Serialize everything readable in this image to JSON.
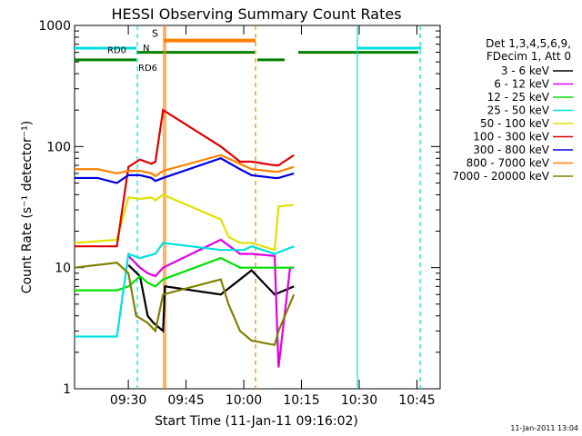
{
  "chart_data": {
    "type": "line",
    "title": "HESSI Observing Summary Count Rates",
    "xlabel": "Start Time (11-Jan-11 09:16:02)",
    "ylabel": "Count Rate (s⁻¹ detector⁻¹)",
    "yscale": "log",
    "ylim": [
      1,
      1000
    ],
    "xlim_minutes": [
      0,
      95
    ],
    "x_tick_labels": [
      "09:30",
      "09:45",
      "10:00",
      "10:15",
      "10:30",
      "10:45"
    ],
    "y_tick_labels": [
      "1",
      "10",
      "100",
      "1000"
    ],
    "footer_date": "11-Jan-2011 13:04",
    "legend_header": [
      "Det 1,3,4,5,6,9,",
      "FDecim 1, Att 0"
    ],
    "legend_position": "right",
    "series": [
      {
        "name": "3 - 6 keV",
        "color": "#000000",
        "points": [
          [
            14,
            10.5
          ],
          [
            17,
            8.5
          ],
          [
            19,
            4
          ],
          [
            20.5,
            3.5
          ],
          [
            23,
            3
          ],
          [
            23.5,
            7
          ],
          [
            38,
            6
          ],
          [
            43,
            8
          ],
          [
            46,
            9.5
          ],
          [
            52,
            6
          ],
          [
            57,
            7
          ]
        ]
      },
      {
        "name": "6 - 12 keV",
        "color": "#e000e0",
        "points": [
          [
            14,
            12.5
          ],
          [
            17,
            10
          ],
          [
            19,
            9
          ],
          [
            21,
            8.5
          ],
          [
            23,
            10
          ],
          [
            38,
            17
          ],
          [
            43,
            13
          ],
          [
            46,
            13
          ],
          [
            52,
            12.5
          ],
          [
            53,
            1.5
          ],
          [
            56,
            10
          ],
          [
            57,
            10
          ]
        ]
      },
      {
        "name": "12 - 25 keV",
        "color": "#00e000",
        "points": [
          [
            0,
            6.5
          ],
          [
            11,
            6.5
          ],
          [
            14,
            7
          ],
          [
            17,
            8.5
          ],
          [
            19,
            7.5
          ],
          [
            21,
            7
          ],
          [
            23,
            8
          ],
          [
            38,
            12
          ],
          [
            43,
            10
          ],
          [
            46,
            10
          ],
          [
            52,
            10
          ],
          [
            57,
            10
          ]
        ]
      },
      {
        "name": "25 - 50 keV",
        "color": "#00e0e0",
        "points": [
          [
            0,
            2.7
          ],
          [
            11,
            2.7
          ],
          [
            14,
            13
          ],
          [
            17,
            12
          ],
          [
            19,
            12.5
          ],
          [
            21,
            13
          ],
          [
            23,
            16
          ],
          [
            38,
            14
          ],
          [
            44,
            14
          ],
          [
            46,
            15
          ],
          [
            52,
            13
          ],
          [
            57,
            15
          ]
        ]
      },
      {
        "name": "50 - 100 keV",
        "color": "#e0e000",
        "points": [
          [
            0,
            16
          ],
          [
            11,
            17
          ],
          [
            14,
            38
          ],
          [
            17,
            37
          ],
          [
            20,
            38
          ],
          [
            21,
            36
          ],
          [
            23,
            40
          ],
          [
            38,
            25
          ],
          [
            40,
            18
          ],
          [
            43,
            16
          ],
          [
            46,
            16
          ],
          [
            52,
            14
          ],
          [
            53,
            32
          ],
          [
            57,
            33
          ]
        ]
      },
      {
        "name": "100 - 300 keV",
        "color": "#e00000",
        "points": [
          [
            0,
            15
          ],
          [
            11,
            15
          ],
          [
            14,
            68
          ],
          [
            17,
            78
          ],
          [
            20,
            72
          ],
          [
            21,
            75
          ],
          [
            23,
            200
          ],
          [
            38,
            100
          ],
          [
            43,
            75
          ],
          [
            46,
            75
          ],
          [
            52,
            70
          ],
          [
            53,
            70
          ],
          [
            57,
            85
          ]
        ]
      },
      {
        "name": "300 - 800 keV",
        "color": "#0000e0",
        "points": [
          [
            0,
            55
          ],
          [
            6,
            55
          ],
          [
            11,
            50
          ],
          [
            14,
            58
          ],
          [
            17,
            58
          ],
          [
            20,
            55
          ],
          [
            21,
            52
          ],
          [
            23,
            55
          ],
          [
            38,
            80
          ],
          [
            43,
            65
          ],
          [
            46,
            58
          ],
          [
            52,
            55
          ],
          [
            53,
            55
          ],
          [
            57,
            60
          ]
        ]
      },
      {
        "name": "800 - 7000 keV",
        "color": "#ff8000",
        "points": [
          [
            0,
            65
          ],
          [
            6,
            65
          ],
          [
            11,
            60
          ],
          [
            14,
            63
          ],
          [
            17,
            63
          ],
          [
            20,
            60
          ],
          [
            21,
            57
          ],
          [
            23,
            63
          ],
          [
            38,
            85
          ],
          [
            43,
            72
          ],
          [
            46,
            65
          ],
          [
            52,
            62
          ],
          [
            53,
            62
          ],
          [
            57,
            68
          ]
        ]
      },
      {
        "name": "7000 - 20000 keV",
        "color": "#808000",
        "points": [
          [
            0,
            10
          ],
          [
            11,
            11
          ],
          [
            14,
            9
          ],
          [
            16,
            4
          ],
          [
            19,
            3.5
          ],
          [
            21,
            3
          ],
          [
            23,
            6
          ],
          [
            38,
            8
          ],
          [
            40,
            5
          ],
          [
            43,
            3
          ],
          [
            46,
            2.5
          ],
          [
            52,
            2.3
          ],
          [
            53,
            3
          ],
          [
            57,
            6
          ]
        ]
      }
    ],
    "attenuator_bars": [
      {
        "label": "S",
        "color": "#ff8000",
        "value": 750
      },
      {
        "label": "N",
        "color": "#00e0e0",
        "value": 650
      },
      {
        "label": "RD0",
        "color": "#008000",
        "value": 600
      },
      {
        "label": "RD6",
        "color": "#008000",
        "value": 520
      }
    ]
  }
}
